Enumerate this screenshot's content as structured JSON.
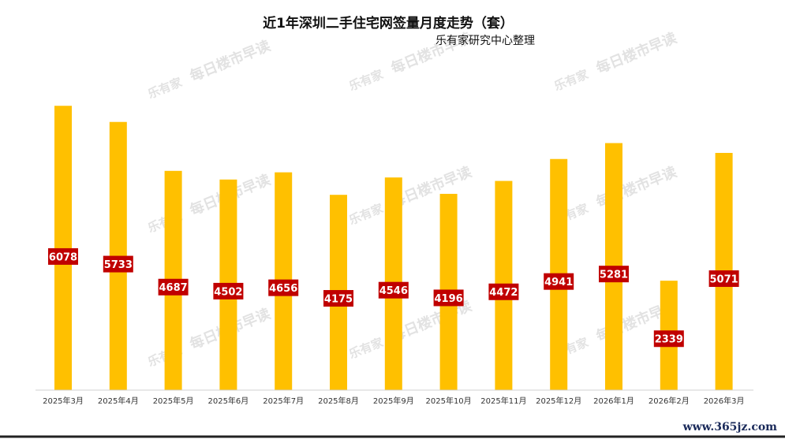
{
  "chart_data": {
    "type": "bar",
    "title": "近1年深圳二手住宅网签量月度走势（套）",
    "subtitle": "乐有家研究中心整理",
    "categories": [
      "2025年3月",
      "2025年4月",
      "2025年5月",
      "2025年6月",
      "2025年7月",
      "2025年8月",
      "2025年9月",
      "2025年10月",
      "2025年11月",
      "2025年12月",
      "2026年1月",
      "2026年2月",
      "2026年3月"
    ],
    "values": [
      6078,
      5733,
      4687,
      4502,
      4656,
      4175,
      4546,
      4196,
      4472,
      4941,
      5281,
      2339,
      5071
    ],
    "ylim": [
      0,
      6200
    ],
    "grid": false,
    "legend": false,
    "colors": {
      "bar": "#FFC000",
      "label_bg": "#C00000",
      "label_text": "#FFFFFF"
    }
  },
  "watermark": {
    "brand": "乐有家",
    "slogan": "每日楼市早读"
  },
  "footer": {
    "site": "www.365jz.com"
  }
}
